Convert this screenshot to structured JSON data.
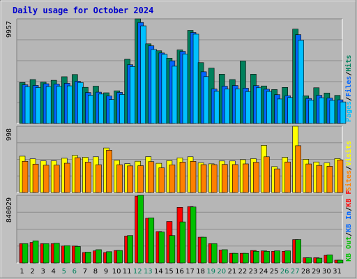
{
  "colors": {
    "background": "#c0c0c0",
    "panel": "#b6b6b6",
    "title": "#0000cc",
    "hits": "#00805c",
    "files": "#0066ff",
    "pages": "#00c0ff",
    "visits": "#ffff00",
    "sites": "#ff8000",
    "kbf": "#ff0000",
    "kbin": "#00c000",
    "kbout": "#00c000",
    "weekend": "#00805c",
    "weekday": "#000000",
    "separator": "#000000"
  },
  "chart_data": {
    "type": "bar",
    "title": "Daily usage for October 2024",
    "x": [
      "1",
      "2",
      "3",
      "4",
      "5",
      "6",
      "7",
      "8",
      "9",
      "10",
      "11",
      "12",
      "13",
      "14",
      "15",
      "16",
      "17",
      "18",
      "19",
      "20",
      "21",
      "22",
      "23",
      "24",
      "25",
      "26",
      "27",
      "28",
      "29",
      "30",
      "31"
    ],
    "weekend_days": [
      5,
      6,
      12,
      13,
      19,
      20,
      26,
      27
    ],
    "panels": [
      {
        "name": "requests",
        "ymax_label": "9957",
        "ymax": 9957,
        "legend": [
          {
            "text": "Hits",
            "color_key": "hits"
          },
          {
            "text": "/",
            "color_key": "separator"
          },
          {
            "text": "Files",
            "color_key": "files"
          },
          {
            "text": "/",
            "color_key": "separator"
          },
          {
            "text": "Pages",
            "color_key": "pages"
          }
        ],
        "series": [
          {
            "name": "Hits",
            "color_key": "hits",
            "values": [
              3900,
              4180,
              3930,
              4110,
              4450,
              4660,
              3440,
              3550,
              2920,
              3110,
              6110,
              9957,
              7580,
              6920,
              6220,
              7000,
              8860,
              5790,
              5270,
              4690,
              4180,
              5940,
              4690,
              3570,
              3230,
              3430,
              8980,
              2630,
              3400,
              2900,
              2670
            ]
          },
          {
            "name": "Files",
            "color_key": "files",
            "values": [
              3680,
              3620,
              3780,
              3750,
              3820,
              4020,
              2940,
              2980,
              2610,
              2960,
              5590,
              9610,
              7390,
              6710,
              5960,
              6860,
              8660,
              4920,
              3280,
              3550,
              3610,
              3360,
              3600,
              3260,
              2740,
              2640,
              8450,
              2380,
              2680,
              2420,
              2250
            ]
          },
          {
            "name": "Pages",
            "color_key": "pages",
            "values": [
              3500,
              3420,
              3510,
              3540,
              3580,
              3900,
              2680,
              2800,
              2280,
              2760,
              5420,
              9290,
              7040,
              6580,
              5450,
              6600,
              8500,
              4460,
              3060,
              3270,
              3290,
              3040,
              3400,
              3050,
              2330,
              2470,
              7910,
              2220,
              2450,
              2200,
              2050
            ]
          }
        ]
      },
      {
        "name": "visitors",
        "ymax_label": "998",
        "ymax": 998,
        "legend": [
          {
            "text": "Visits",
            "color_key": "visits"
          },
          {
            "text": "/",
            "color_key": "separator"
          },
          {
            "text": "Sites",
            "color_key": "sites"
          }
        ],
        "series": [
          {
            "name": "Visits",
            "color_key": "visits",
            "values": [
              547,
              507,
              477,
              477,
              516,
              559,
              531,
              538,
              671,
              485,
              434,
              471,
              540,
              440,
              480,
              522,
              538,
              448,
              432,
              475,
              475,
              495,
              510,
              710,
              390,
              530,
              998,
              500,
              460,
              447,
              511
            ]
          },
          {
            "name": "Sites",
            "color_key": "sites",
            "values": [
              470,
              428,
              411,
              412,
              441,
              525,
              458,
              419,
              637,
              419,
              401,
              404,
              465,
              372,
              417,
              458,
              469,
              420,
              420,
              423,
              421,
              431,
              456,
              538,
              356,
              460,
              705,
              430,
              408,
              395,
              491
            ]
          }
        ]
      },
      {
        "name": "kbytes",
        "ymax_label": "840029",
        "ymax": 840029,
        "legend": [
          {
            "text": "KB F",
            "color_key": "kbf"
          },
          {
            "text": "/",
            "color_key": "separator"
          },
          {
            "text": "KB In",
            "color_key": "files"
          },
          {
            "text": "/",
            "color_key": "separator"
          },
          {
            "text": "KB Out",
            "color_key": "kbout"
          }
        ],
        "series": [
          {
            "name": "KB F",
            "color_key": "kbf",
            "values": [
              240000,
              255000,
              240000,
              240000,
              210000,
              210000,
              130000,
              150000,
              130000,
              155000,
              335000,
              830000,
              555000,
              390000,
              515000,
              690000,
              700000,
              320000,
              240000,
              160000,
              120000,
              120000,
              155000,
              150000,
              145000,
              145000,
              290000,
              65000,
              65000,
              95000,
              35000
            ]
          },
          {
            "name": "KB Out",
            "color_key": "kbout",
            "values": [
              240000,
              275000,
              240000,
              245000,
              215000,
              205000,
              135000,
              165000,
              140000,
              155000,
              340000,
              840029,
              560000,
              385000,
              340000,
              510000,
              695000,
              320000,
              240000,
              165000,
              120000,
              120000,
              145000,
              145000,
              150000,
              150000,
              290000,
              65000,
              60000,
              100000,
              35000
            ]
          }
        ]
      }
    ]
  }
}
